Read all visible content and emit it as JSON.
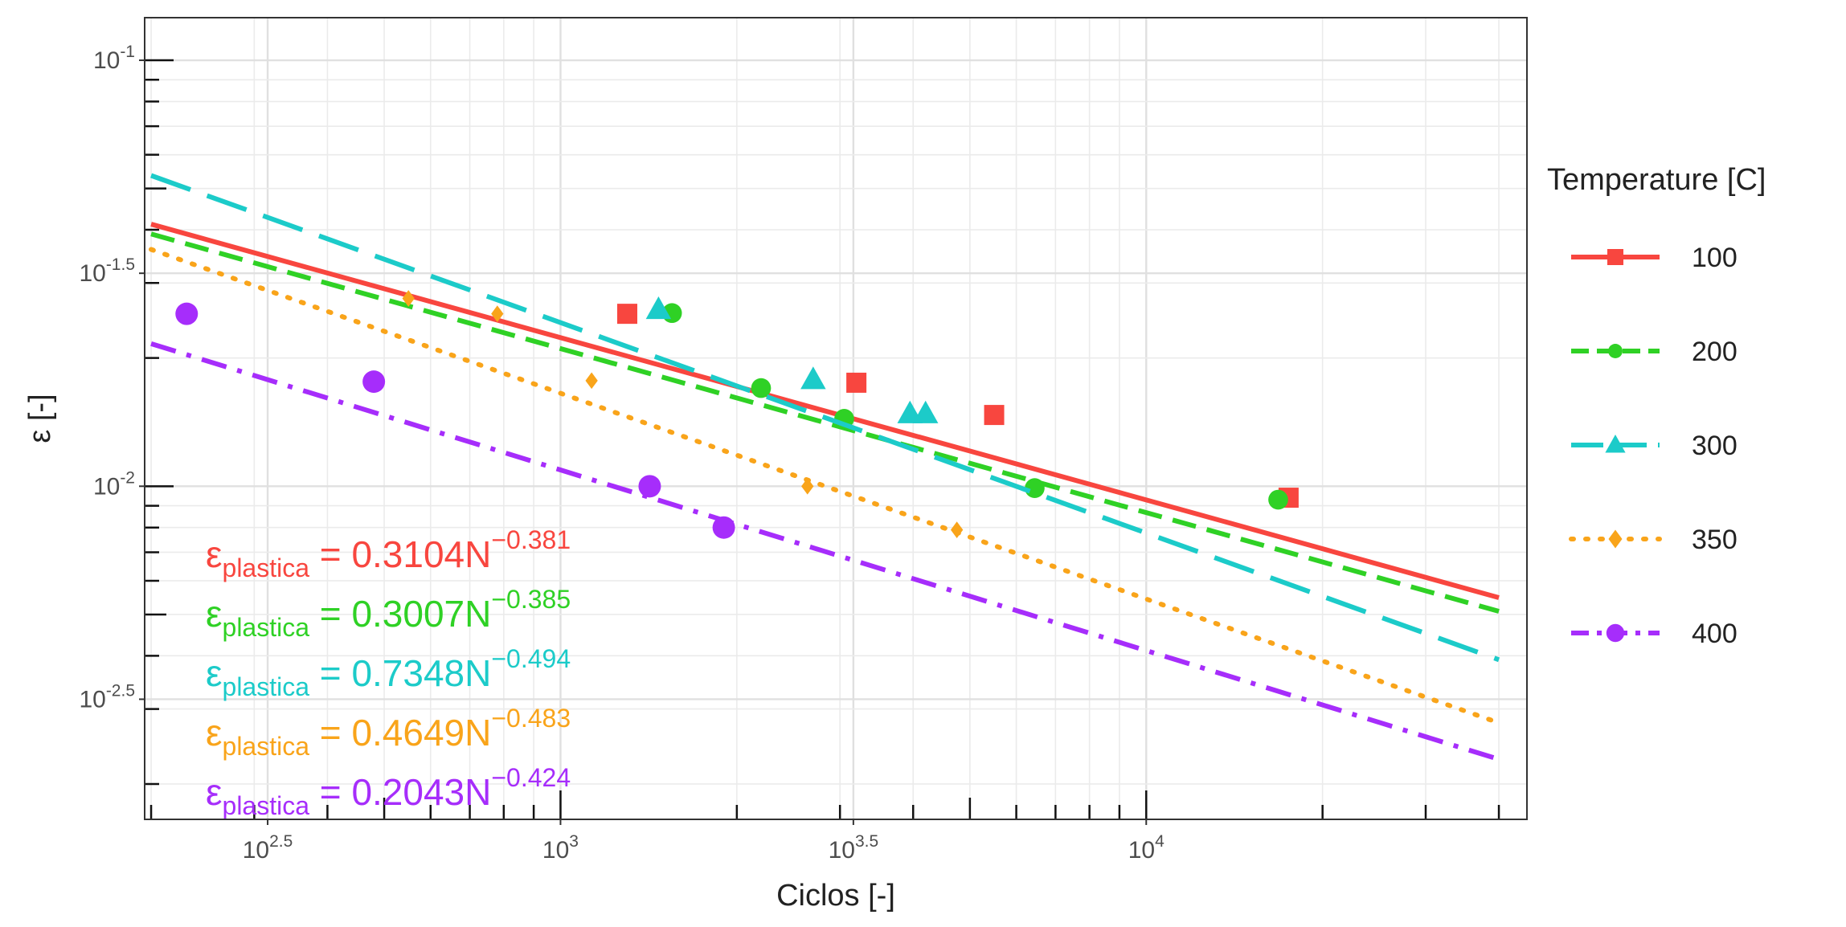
{
  "chart_data": {
    "type": "scatter",
    "scale": "log-log",
    "xlabel": "Ciclos [-]",
    "ylabel": "ε [-]",
    "xlim_log10": [
      2.29,
      4.65
    ],
    "ylim_log10": [
      -2.782,
      -0.9
    ],
    "x_ticks": [
      {
        "log": 2.5,
        "base": "10",
        "exp": "2.5"
      },
      {
        "log": 3.0,
        "base": "10",
        "exp": "3"
      },
      {
        "log": 3.5,
        "base": "10",
        "exp": "3.5"
      },
      {
        "log": 4.0,
        "base": "10",
        "exp": "4"
      }
    ],
    "y_ticks": [
      {
        "log": -1.0,
        "base": "10",
        "exp": "-1"
      },
      {
        "log": -1.5,
        "base": "10",
        "exp": "-1.5"
      },
      {
        "log": -2.0,
        "base": "10",
        "exp": "-2"
      },
      {
        "log": -2.5,
        "base": "10",
        "exp": "-2.5"
      }
    ],
    "grid": true,
    "legend": {
      "title": "Temperature [C]",
      "position": "right",
      "entries": [
        "100",
        "200",
        "300",
        "350",
        "400"
      ]
    },
    "fit_x_range": [
      200,
      40000
    ],
    "series": [
      {
        "name": "100",
        "color": "#f8463f",
        "dash": "solid",
        "marker": "square",
        "fit": {
          "a": 0.3104,
          "b": -0.381
        },
        "points": [
          [
            1300,
            0.0254
          ],
          [
            3200,
            0.0175
          ],
          [
            5500,
            0.0147
          ],
          [
            17500,
            0.0094
          ]
        ]
      },
      {
        "name": "200",
        "color": "#2fd125",
        "dash": "medium",
        "marker": "circle",
        "fit": {
          "a": 0.3007,
          "b": -0.385
        },
        "points": [
          [
            1550,
            0.0255
          ],
          [
            2200,
            0.017
          ],
          [
            3050,
            0.0144
          ],
          [
            6450,
            0.0099
          ],
          [
            16800,
            0.0093
          ]
        ]
      },
      {
        "name": "300",
        "color": "#1ccbc9",
        "dash": "long",
        "marker": "triangle",
        "fit": {
          "a": 0.7348,
          "b": -0.494
        },
        "points": [
          [
            1470,
            0.026
          ],
          [
            2700,
            0.0178
          ],
          [
            3950,
            0.0148
          ],
          [
            4200,
            0.0148
          ]
        ]
      },
      {
        "name": "350",
        "color": "#f9a41a",
        "dash": "dotted",
        "marker": "diamond",
        "fit": {
          "a": 0.4649,
          "b": -0.483
        },
        "points": [
          [
            550,
            0.0276
          ],
          [
            780,
            0.0254
          ],
          [
            1130,
            0.0177
          ],
          [
            2640,
            0.01
          ],
          [
            4750,
            0.0079
          ]
        ]
      },
      {
        "name": "400",
        "color": "#a62dfb",
        "dash": "dashdot",
        "marker": "circle",
        "fit": {
          "a": 0.2043,
          "b": -0.424
        },
        "points": [
          [
            230,
            0.0254
          ],
          [
            480,
            0.0176
          ],
          [
            1420,
            0.01
          ],
          [
            1900,
            0.008
          ]
        ]
      }
    ],
    "annotations": [
      {
        "sym": "ε",
        "sub": "plastica",
        "eq": " = 0.3104N",
        "exp": "−0.381",
        "color": "#f8463f"
      },
      {
        "sym": "ε",
        "sub": "plastica",
        "eq": " = 0.3007N",
        "exp": "−0.385",
        "color": "#2fd125"
      },
      {
        "sym": "ε",
        "sub": "plastica",
        "eq": " = 0.7348N",
        "exp": "−0.494",
        "color": "#1ccbc9"
      },
      {
        "sym": "ε",
        "sub": "plastica",
        "eq": " = 0.4649N",
        "exp": "−0.483",
        "color": "#f9a41a"
      },
      {
        "sym": "ε",
        "sub": "plastica",
        "eq": " = 0.2043N",
        "exp": "−0.424",
        "color": "#a62dfb"
      }
    ]
  }
}
